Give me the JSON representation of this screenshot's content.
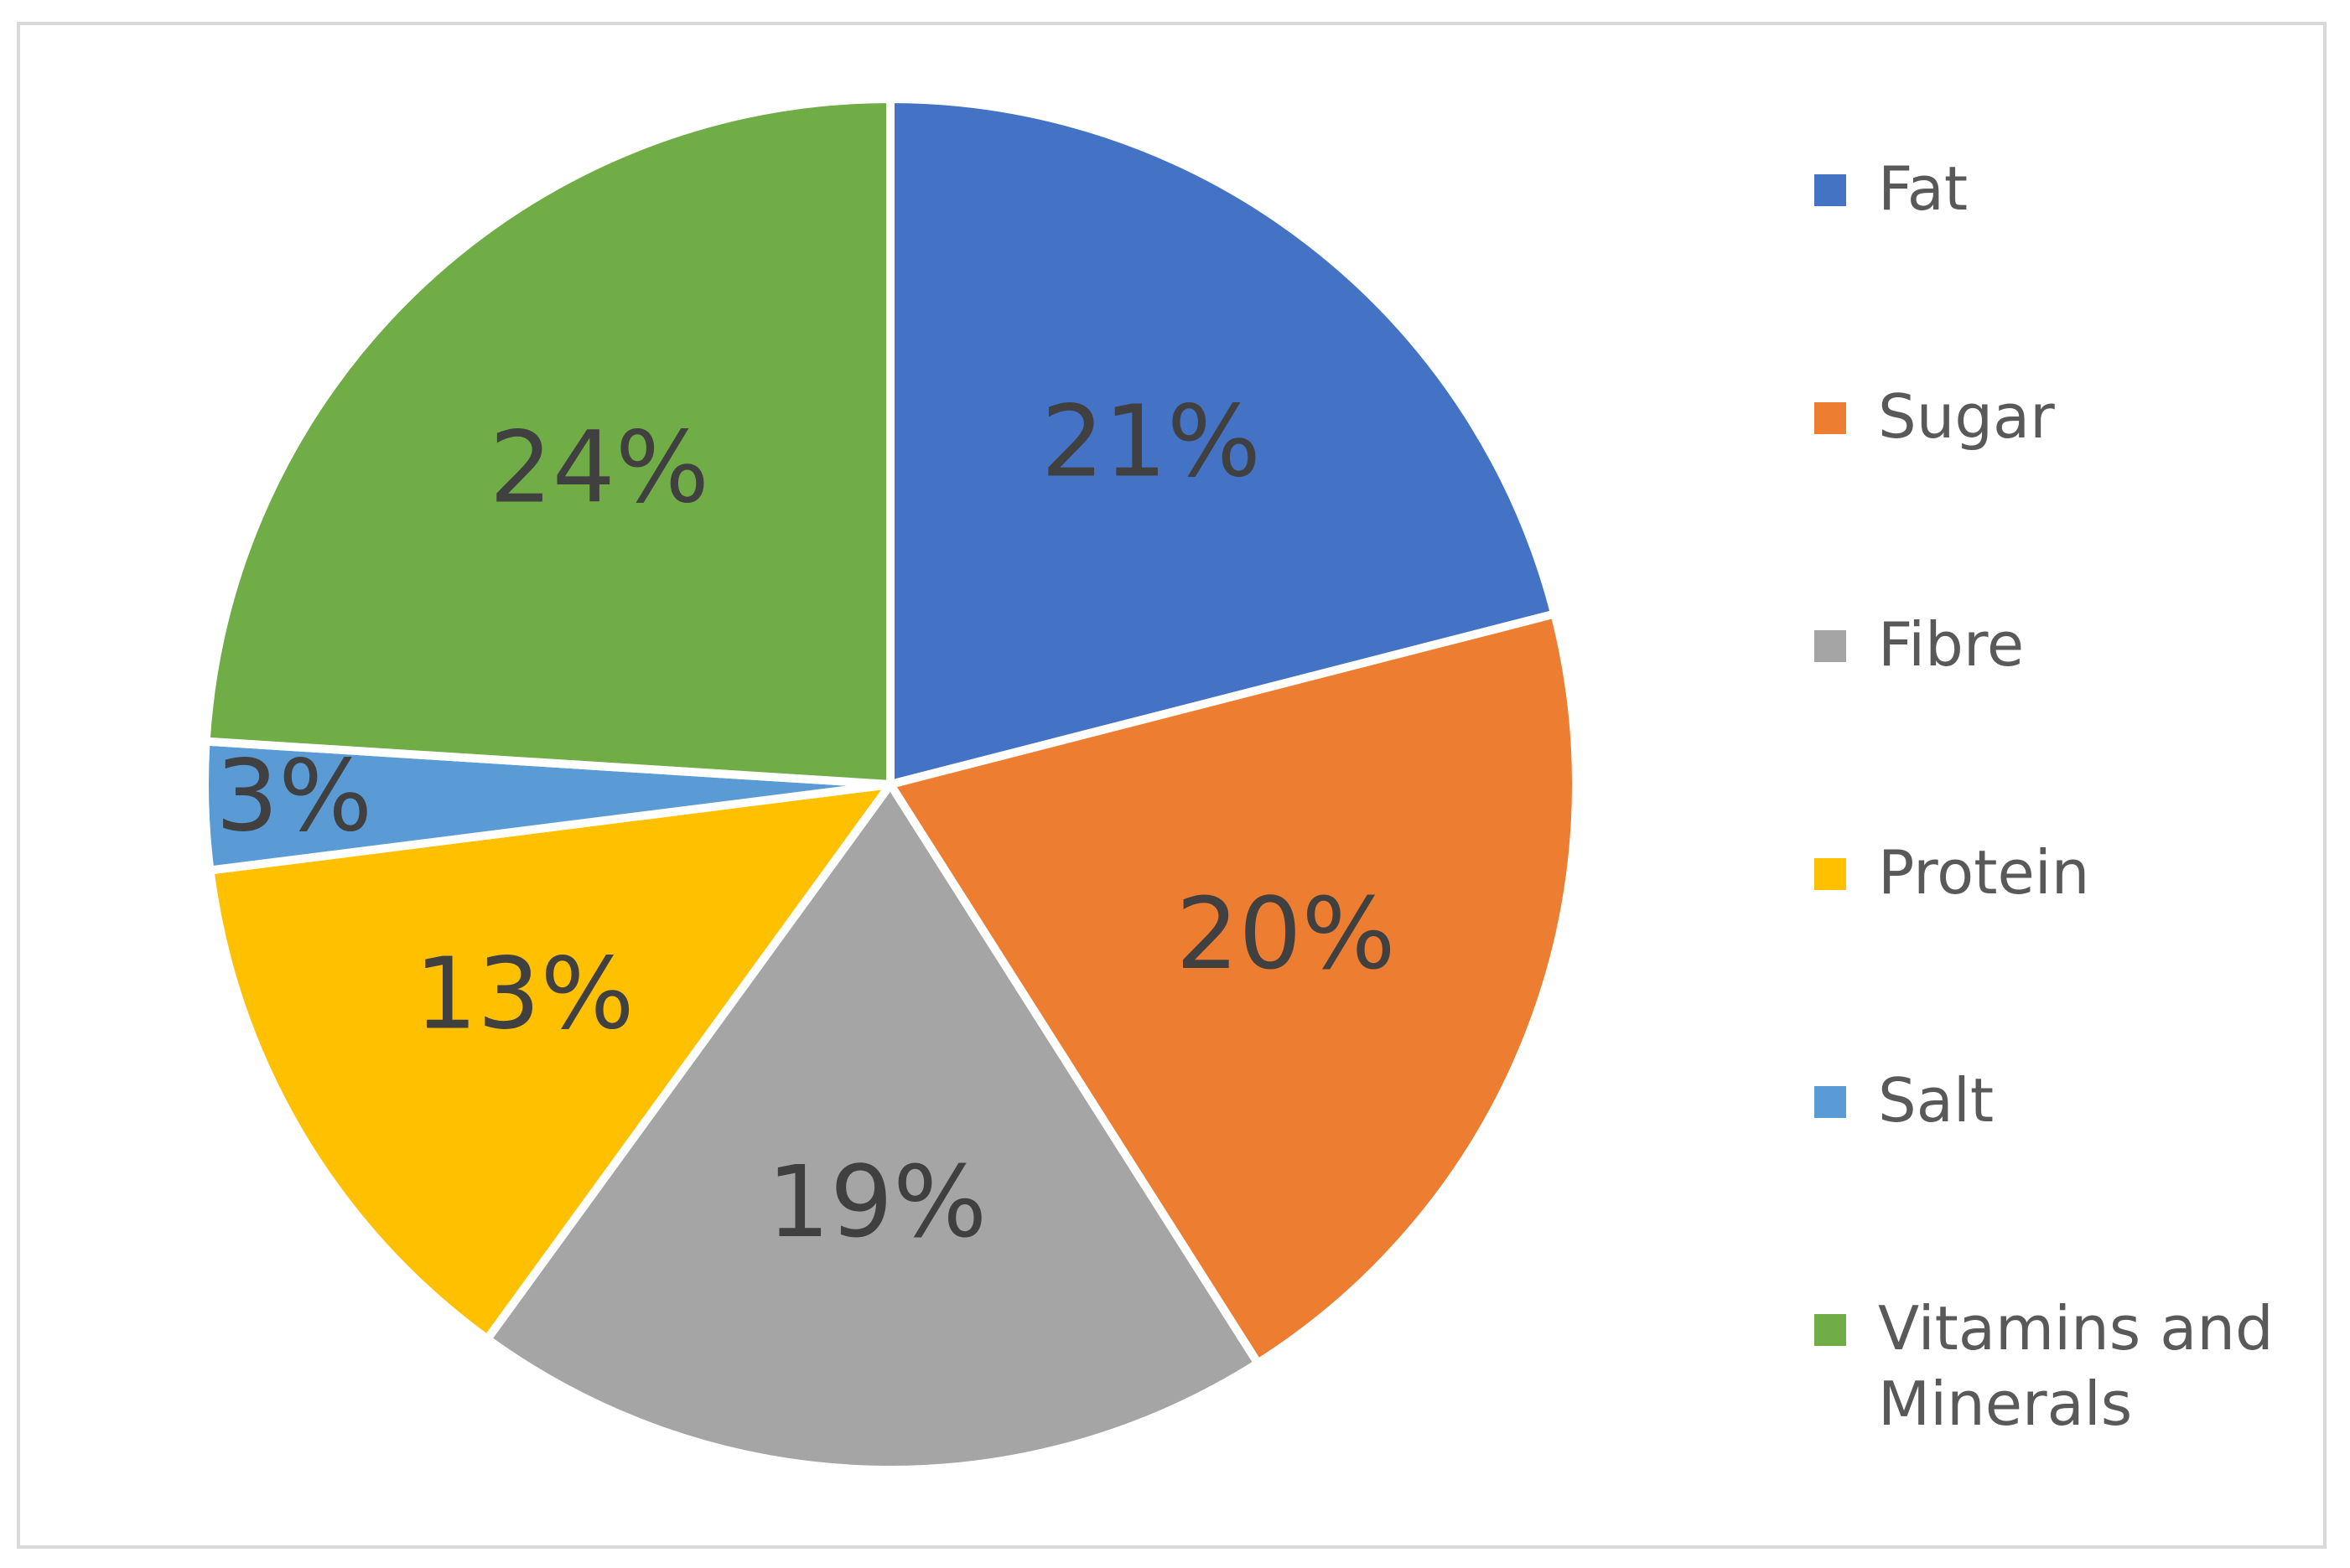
{
  "chart_data": {
    "type": "pie",
    "title": "",
    "legend_position": "right",
    "data_labels": "percent",
    "start_angle_deg": 0,
    "direction": "clockwise",
    "series": [
      {
        "name": "",
        "slices": [
          {
            "label": "Fat",
            "value": 21,
            "display": "21%",
            "color": "#4472C4"
          },
          {
            "label": "Sugar",
            "value": 20,
            "display": "20%",
            "color": "#ED7D31"
          },
          {
            "label": "Fibre",
            "value": 19,
            "display": "19%",
            "color": "#A5A5A5"
          },
          {
            "label": "Protein",
            "value": 13,
            "display": "13%",
            "color": "#FFC000"
          },
          {
            "label": "Salt",
            "value": 3,
            "display": "3%",
            "color": "#5B9BD5"
          },
          {
            "label": "Vitamins and Minerals",
            "value": 24,
            "display": "24%",
            "color": "#70AD47"
          }
        ]
      }
    ]
  }
}
